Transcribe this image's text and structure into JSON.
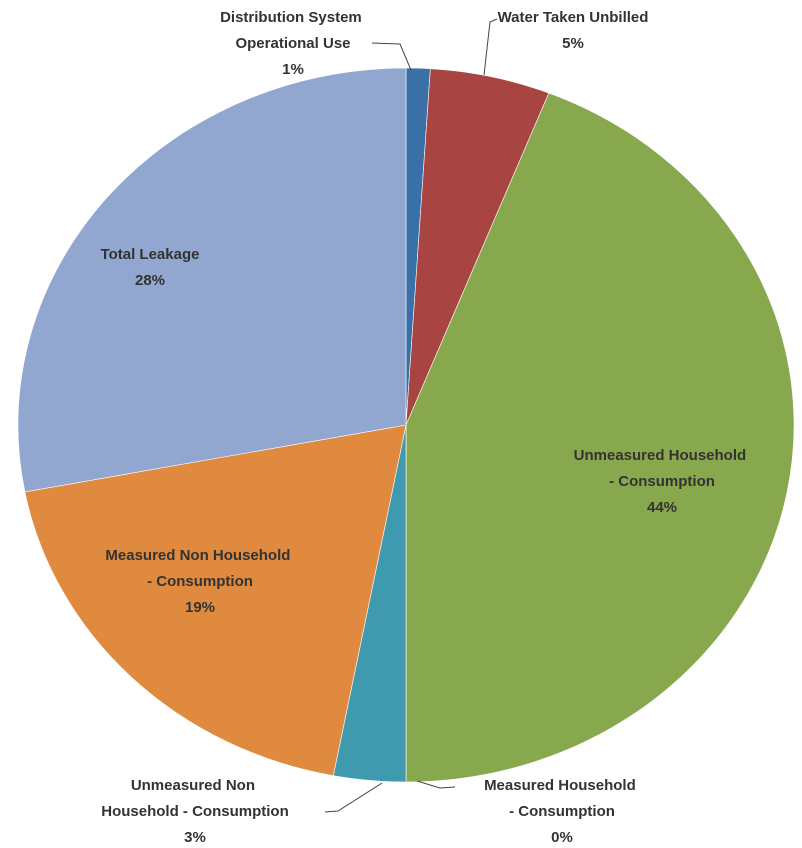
{
  "chart_data": {
    "type": "pie",
    "categories": [
      "Distribution System Operational Use",
      "Water Taken Unbilled",
      "Unmeasured Household - Consumption",
      "Measured Household - Consumption",
      "Unmeasured Non Household - Consumption",
      "Measured Non Household - Consumption",
      "Total Leakage"
    ],
    "values": [
      1,
      5,
      44,
      0,
      3,
      19,
      28
    ],
    "value_labels": [
      "1%",
      "5%",
      "44%",
      "0%",
      "3%",
      "19%",
      "28%"
    ],
    "colors": [
      "#3a6fa8",
      "#a84442",
      "#88a84e",
      "#7a5f9a",
      "#3f9ab0",
      "#df8a3e",
      "#91a7cf"
    ]
  }
}
